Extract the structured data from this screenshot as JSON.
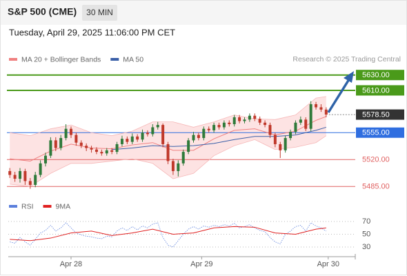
{
  "chart_data": {
    "type": "candlestick",
    "title": "S&P 500 (CME)",
    "timeframe": "30 MIN",
    "subtitle": "Tuesday, April 29, 2025 11:06:00 PM CET",
    "source": "Research © 2025 Trading Central",
    "xlim": [
      -0.3,
      67.7
    ],
    "xticks": [
      {
        "value": 12,
        "label": "Apr 28"
      },
      {
        "value": 37.6,
        "label": "Apr 29"
      },
      {
        "value": 62.4,
        "label": "Apr 30"
      }
    ],
    "ylim": [
      5478,
      5645
    ],
    "up_color": "#2f7a3a",
    "down_color": "#c0392b",
    "candles": {
      "open": [
        5505,
        5500,
        5495,
        5505,
        5492,
        5487,
        5500,
        5515,
        5525,
        5545,
        5535,
        5548,
        5560,
        5552,
        5542,
        5538,
        5535,
        5533,
        5530,
        5528,
        5532,
        5530,
        5540,
        5547,
        5543,
        5550,
        5546,
        5555,
        5553,
        5562,
        5565,
        5540,
        5518,
        5505,
        5515,
        5530,
        5545,
        5552,
        5548,
        5560,
        5558,
        5565,
        5562,
        5568,
        5566,
        5575,
        5570,
        5572,
        5577,
        5573,
        5568,
        5565,
        5552,
        5540,
        5532,
        5548,
        5556,
        5568,
        5572,
        5560,
        5592,
        5588,
        5585
      ],
      "high": [
        5509,
        5504,
        5509,
        5508,
        5496,
        5504,
        5519,
        5529,
        5549,
        5549,
        5552,
        5566,
        5563,
        5555,
        5545,
        5541,
        5538,
        5536,
        5533,
        5535,
        5535,
        5543,
        5551,
        5550,
        5554,
        5553,
        5559,
        5558,
        5566,
        5569,
        5567,
        5543,
        5521,
        5519,
        5533,
        5548,
        5556,
        5555,
        5563,
        5563,
        5568,
        5568,
        5571,
        5571,
        5578,
        5578,
        5575,
        5580,
        5580,
        5576,
        5571,
        5568,
        5555,
        5543,
        5551,
        5559,
        5571,
        5576,
        5575,
        5596,
        5595,
        5592,
        5588
      ],
      "low": [
        5496,
        5491,
        5490,
        5487,
        5482,
        5484,
        5497,
        5511,
        5522,
        5531,
        5532,
        5545,
        5548,
        5538,
        5535,
        5531,
        5529,
        5527,
        5525,
        5525,
        5527,
        5527,
        5537,
        5540,
        5540,
        5543,
        5543,
        5550,
        5550,
        5559,
        5536,
        5514,
        5500,
        5498,
        5512,
        5527,
        5542,
        5545,
        5545,
        5555,
        5555,
        5559,
        5559,
        5563,
        5563,
        5567,
        5567,
        5569,
        5570,
        5565,
        5562,
        5548,
        5536,
        5522,
        5529,
        5545,
        5553,
        5565,
        5557,
        5557,
        5585,
        5582,
        5575
      ],
      "close": [
        5500,
        5495,
        5505,
        5492,
        5487,
        5500,
        5515,
        5525,
        5545,
        5535,
        5548,
        5560,
        5552,
        5542,
        5538,
        5535,
        5533,
        5530,
        5528,
        5532,
        5530,
        5540,
        5547,
        5543,
        5550,
        5546,
        5555,
        5553,
        5562,
        5565,
        5540,
        5518,
        5505,
        5515,
        5530,
        5545,
        5552,
        5548,
        5560,
        5558,
        5565,
        5562,
        5568,
        5566,
        5575,
        5570,
        5572,
        5577,
        5573,
        5568,
        5565,
        5552,
        5540,
        5532,
        5548,
        5556,
        5568,
        5572,
        5560,
        5592,
        5588,
        5585,
        5578.5
      ]
    },
    "overlays": [
      {
        "name": "MA 20 + Bollinger Bands",
        "color": "#f08080",
        "band_color": "#fde3e3",
        "x": [
          0,
          4,
          8,
          12,
          16,
          20,
          24,
          28,
          32,
          36,
          40,
          44,
          48,
          52,
          56,
          60,
          62
        ],
        "values": [
          5521,
          5518,
          5531,
          5540,
          5535,
          5534,
          5539,
          5542,
          5532,
          5532,
          5547,
          5558,
          5560,
          5552,
          5557,
          5571,
          5576
        ],
        "upper": [
          5555,
          5551,
          5560,
          5565,
          5555,
          5551,
          5557,
          5569,
          5569,
          5562,
          5569,
          5578,
          5573,
          5572,
          5578,
          5600,
          5602
        ],
        "lower": [
          5488,
          5485,
          5502,
          5515,
          5515,
          5518,
          5521,
          5515,
          5495,
          5502,
          5525,
          5538,
          5546,
          5533,
          5536,
          5542,
          5551
        ]
      },
      {
        "name": "MA 50",
        "color": "#3a5fa8",
        "x": [
          20,
          24,
          28,
          32,
          36,
          40,
          44,
          48,
          52,
          56,
          60,
          62
        ],
        "values": [
          5533,
          5535,
          5538,
          5537,
          5538,
          5541,
          5546,
          5550,
          5550,
          5552,
          5558,
          5562
        ]
      }
    ],
    "levels": [
      {
        "value": 5630,
        "label": "5630.00",
        "color": "#4a9a1a",
        "label_box": true,
        "line_width": 2
      },
      {
        "value": 5610,
        "label": "5610.00",
        "color": "#4a9a1a",
        "label_box": true,
        "line_width": 2
      },
      {
        "value": 5578.5,
        "label": "5578.50",
        "color": "#333333",
        "label_box": true,
        "line_width": 1,
        "dotted": true
      },
      {
        "value": 5555,
        "label": "5555.00",
        "color": "#2f6ee0",
        "label_box": true,
        "line_width": 1
      },
      {
        "value": 5520,
        "label": "5520.00",
        "color": "#e06060",
        "label_box": false,
        "line_width": 1
      },
      {
        "value": 5485,
        "label": "5485.00",
        "color": "#e06060",
        "label_box": false,
        "line_width": 1
      }
    ],
    "rsi": {
      "ylim": [
        20,
        80
      ],
      "yticks": [
        70,
        50,
        30
      ],
      "series": [
        {
          "name": "RSI",
          "color": "#5b7fdc",
          "values": [
            38,
            36,
            45,
            38,
            33,
            42,
            52,
            56,
            64,
            55,
            60,
            68,
            60,
            52,
            49,
            47,
            46,
            44,
            43,
            47,
            46,
            55,
            60,
            56,
            62,
            57,
            63,
            60,
            66,
            68,
            45,
            33,
            30,
            40,
            50,
            58,
            62,
            58,
            63,
            61,
            64,
            62,
            65,
            63,
            67,
            60,
            62,
            65,
            60,
            56,
            54,
            45,
            38,
            35,
            50,
            55,
            62,
            64,
            55,
            68,
            63,
            60,
            55
          ]
        },
        {
          "name": "9MA",
          "color": "#e02020",
          "x": [
            0,
            4,
            8,
            12,
            16,
            20,
            24,
            28,
            32,
            36,
            40,
            44,
            48,
            52,
            56,
            60,
            62
          ],
          "values": [
            42,
            40,
            44,
            52,
            55,
            48,
            52,
            58,
            50,
            52,
            60,
            62,
            61,
            52,
            50,
            58,
            60
          ]
        }
      ]
    }
  }
}
